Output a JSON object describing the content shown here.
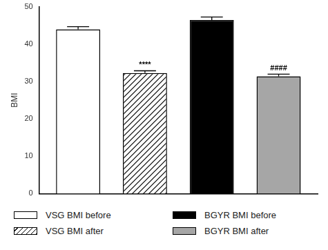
{
  "chart_data": {
    "type": "bar",
    "y_label": "BMI",
    "categories": [
      null
    ],
    "series": [
      {
        "name": "VSG BMI before",
        "color": "#ffffff",
        "values": [
          44.0
        ],
        "errors": [
          0.7
        ]
      },
      {
        "name": "VSG BMI after",
        "color": "#ffffff",
        "values": [
          32.3
        ],
        "errors": [
          0.6
        ]
      },
      {
        "name": "BGYR BMI before",
        "color": "#000000",
        "values": [
          46.5
        ],
        "errors": [
          0.8
        ]
      },
      {
        "name": "BGYR BMI after",
        "color": "#a6a6a6",
        "values": [
          31.4
        ],
        "errors": [
          0.6
        ]
      }
    ],
    "annotations": [
      {
        "text": "****",
        "series": "VSG BMI after"
      },
      {
        "text": "####",
        "series": "BGYR BMI after"
      }
    ],
    "ylim": [
      0,
      50
    ],
    "yticks": [
      0,
      10,
      20,
      30,
      40,
      50
    ],
    "grid": false,
    "legend": "bottom",
    "tick_labels": "y"
  }
}
